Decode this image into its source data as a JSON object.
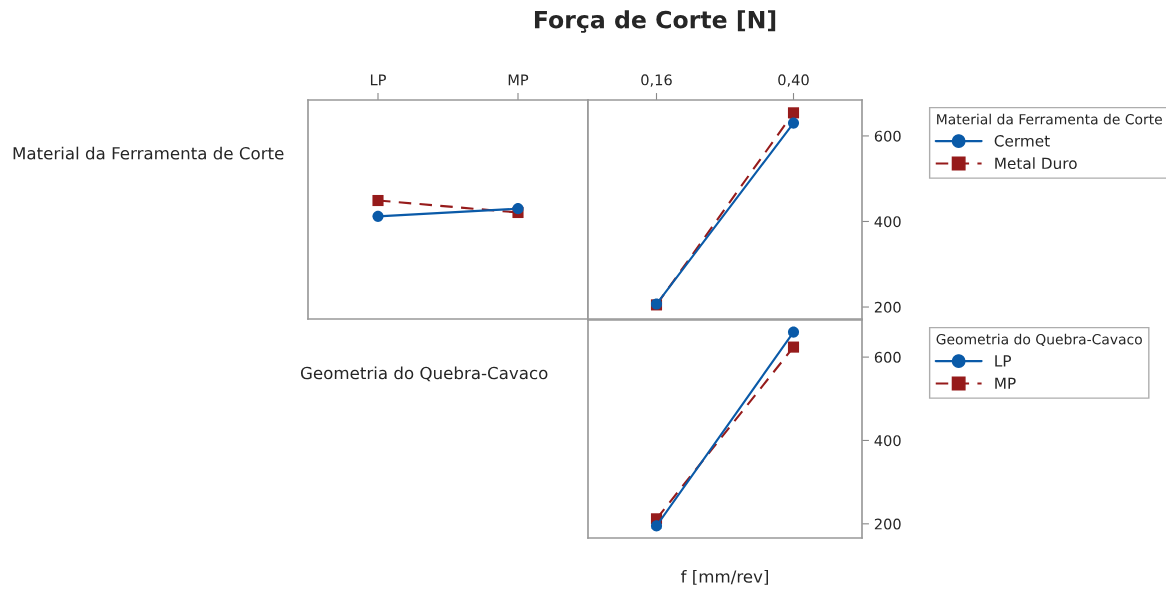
{
  "chart_data": [
    {
      "type": "line",
      "title": "Força de Corte [N]",
      "ylabel": "Material da Ferramenta de Corte",
      "categories": [
        "LP",
        "MP"
      ],
      "ylim": [
        172,
        684
      ],
      "yticks": [
        200,
        400,
        600
      ],
      "tick_labels": "x",
      "legend": false,
      "grid": false,
      "series": [
        {
          "color": "#0a5aa8",
          "marker": "circle",
          "line_style": "solid",
          "values": [
            412,
            430
          ]
        },
        {
          "color": "#961b1b",
          "marker": "square",
          "line_style": "dashed",
          "values": [
            449,
            421
          ]
        }
      ]
    },
    {
      "type": "line",
      "categories": [
        "0,16",
        "0,40"
      ],
      "ylim": [
        172,
        684
      ],
      "yticks": [
        200,
        400,
        600
      ],
      "legend": "right",
      "legend_title": "Material da Ferramenta de Corte",
      "grid": false,
      "series": [
        {
          "name": "Cermet",
          "color": "#0a5aa8",
          "marker": "circle",
          "line_style": "solid",
          "values": [
            207,
            630
          ]
        },
        {
          "name": "Metal Duro",
          "color": "#961b1b",
          "marker": "square",
          "line_style": "dashed",
          "values": [
            205,
            654
          ]
        }
      ]
    },
    {
      "type": "line",
      "ylabel": "Geometria do Quebra-Cavaco",
      "xlabel": "f [mm/rev]",
      "categories": [
        "0,16",
        "0,40"
      ],
      "ylim": [
        166,
        689
      ],
      "yticks": [
        200,
        400,
        600
      ],
      "tick_labels": "y",
      "legend": "right",
      "legend_title": "Geometria do Quebra-Cavaco",
      "grid": false,
      "series": [
        {
          "name": "LP",
          "color": "#0a5aa8",
          "marker": "circle",
          "line_style": "solid",
          "values": [
            195,
            660
          ]
        },
        {
          "name": "MP",
          "color": "#961b1b",
          "marker": "square",
          "line_style": "dashed",
          "values": [
            212,
            624
          ]
        }
      ]
    }
  ]
}
